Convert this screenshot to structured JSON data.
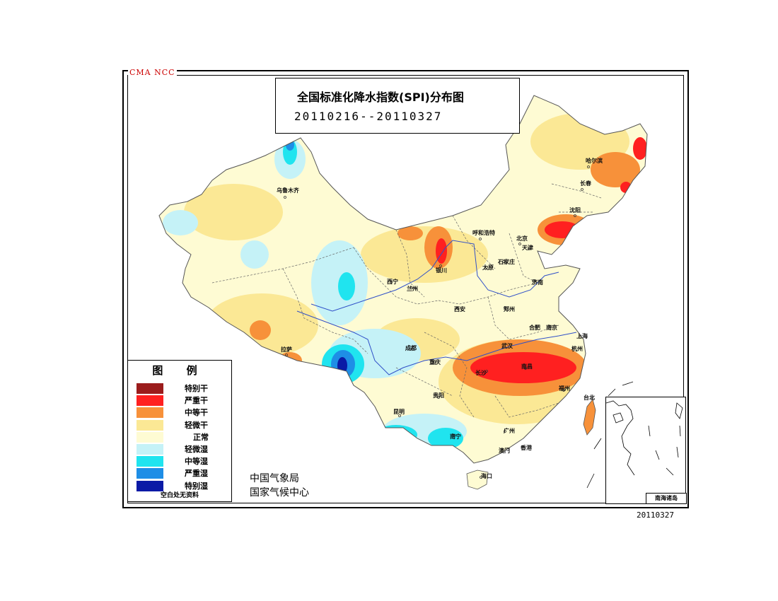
{
  "header": {
    "watermark": "CMA NCC",
    "title": "全国标准化降水指数(SPI)分布图",
    "date_range": "20110216--20110327"
  },
  "legend": {
    "title": "图 例",
    "items": [
      {
        "label": "特别干",
        "color": "#9b1c1c"
      },
      {
        "label": "严重干",
        "color": "#ff2020"
      },
      {
        "label": "中等干",
        "color": "#f7913a"
      },
      {
        "label": "轻微干",
        "color": "#fbe895"
      },
      {
        "label": "正常",
        "color": "#fefbd3"
      },
      {
        "label": "轻微湿",
        "color": "#c5f2f7"
      },
      {
        "label": "中等湿",
        "color": "#20e4ef"
      },
      {
        "label": "严重湿",
        "color": "#1e8ee6"
      },
      {
        "label": "特别湿",
        "color": "#0a1aa6"
      }
    ],
    "note": "空白处无资料"
  },
  "agency": {
    "line1": "中国气象局",
    "line2": "国家气候中心"
  },
  "inset": {
    "label": "南海诸岛"
  },
  "cities": [
    {
      "name": "乌鲁木齐"
    },
    {
      "name": "哈尔滨"
    },
    {
      "name": "长春"
    },
    {
      "name": "沈阳"
    },
    {
      "name": "呼和浩特"
    },
    {
      "name": "北京"
    },
    {
      "name": "天津"
    },
    {
      "name": "石家庄"
    },
    {
      "name": "太原"
    },
    {
      "name": "银川"
    },
    {
      "name": "西宁"
    },
    {
      "name": "兰州"
    },
    {
      "name": "济南"
    },
    {
      "name": "郑州"
    },
    {
      "name": "西安"
    },
    {
      "name": "合肥"
    },
    {
      "name": "南京"
    },
    {
      "name": "上海"
    },
    {
      "name": "武汉"
    },
    {
      "name": "杭州"
    },
    {
      "name": "成都"
    },
    {
      "name": "重庆"
    },
    {
      "name": "长沙"
    },
    {
      "name": "南昌"
    },
    {
      "name": "福州"
    },
    {
      "name": "台北"
    },
    {
      "name": "贵阳"
    },
    {
      "name": "昆明"
    },
    {
      "name": "南宁"
    },
    {
      "name": "广州"
    },
    {
      "name": "澳门"
    },
    {
      "name": "香港"
    },
    {
      "name": "海口"
    },
    {
      "name": "拉萨"
    }
  ],
  "footer": {
    "date": "20110327"
  }
}
